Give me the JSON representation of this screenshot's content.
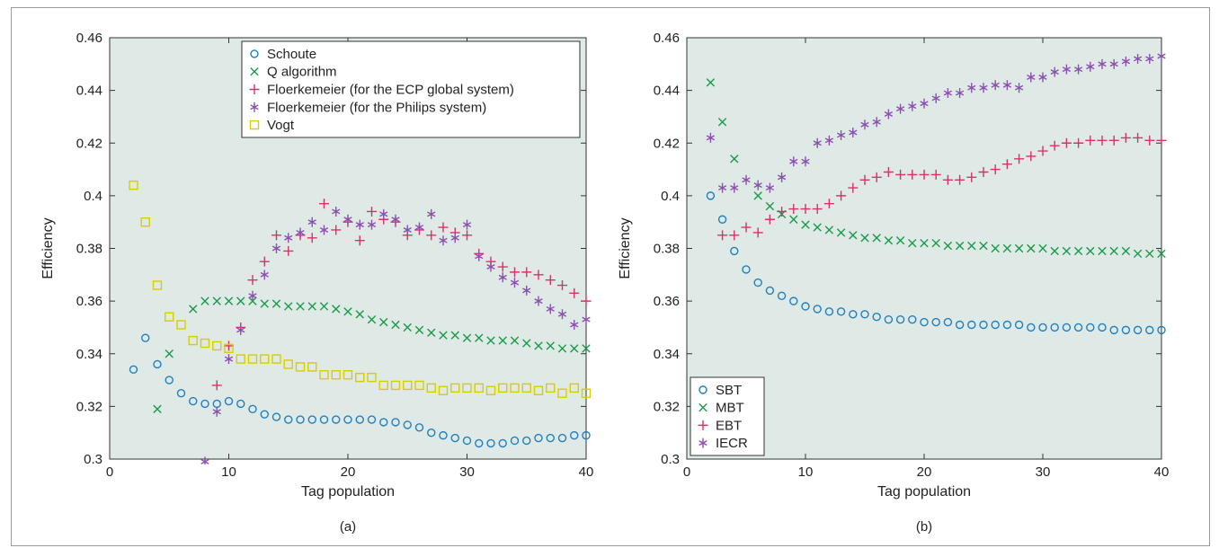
{
  "colors": {
    "plot_bg": "#dfeae6",
    "axis": "#333333",
    "blue": "#1f7fc1",
    "green": "#1a9a4a",
    "red": "#d9306a",
    "purple": "#8a4fb0",
    "yellow": "#d7cd00"
  },
  "chart_data": [
    {
      "type": "scatter",
      "caption": "(a)",
      "xlabel": "Tag population",
      "ylabel": "Efficiency",
      "xlim": [
        0,
        40
      ],
      "ylim": [
        0.3,
        0.46
      ],
      "xticks": [
        0,
        10,
        20,
        30,
        40
      ],
      "yticks": [
        0.3,
        0.32,
        0.34,
        0.36,
        0.38,
        0.4,
        0.42,
        0.44,
        0.46
      ],
      "ytick_labels": [
        "0.3",
        "0.32",
        "0.34",
        "0.36",
        "0.38",
        "0.4",
        "0.42",
        "0.44",
        "0.46"
      ],
      "legend_position": "top-right",
      "series": [
        {
          "name": "Schoute",
          "marker": "circle",
          "color": "blue",
          "x": [
            2,
            3,
            4,
            5,
            6,
            7,
            8,
            9,
            10,
            11,
            12,
            13,
            14,
            15,
            16,
            17,
            18,
            19,
            20,
            21,
            22,
            23,
            24,
            25,
            26,
            27,
            28,
            29,
            30,
            31,
            32,
            33,
            34,
            35,
            36,
            37,
            38,
            39,
            40
          ],
          "y": [
            0.334,
            0.346,
            0.336,
            0.33,
            0.325,
            0.322,
            0.321,
            0.321,
            0.322,
            0.321,
            0.319,
            0.317,
            0.316,
            0.315,
            0.315,
            0.315,
            0.315,
            0.315,
            0.315,
            0.315,
            0.315,
            0.314,
            0.314,
            0.313,
            0.312,
            0.31,
            0.309,
            0.308,
            0.307,
            0.306,
            0.306,
            0.306,
            0.307,
            0.307,
            0.308,
            0.308,
            0.308,
            0.309,
            0.309
          ]
        },
        {
          "name": "Q algorithm",
          "marker": "x",
          "color": "green",
          "x": [
            4,
            5,
            7,
            8,
            9,
            10,
            11,
            12,
            13,
            14,
            15,
            16,
            17,
            18,
            19,
            20,
            21,
            22,
            23,
            24,
            25,
            26,
            27,
            28,
            29,
            30,
            31,
            32,
            33,
            34,
            35,
            36,
            37,
            38,
            39,
            40
          ],
          "y": [
            0.319,
            0.34,
            0.357,
            0.36,
            0.36,
            0.36,
            0.36,
            0.36,
            0.359,
            0.359,
            0.358,
            0.358,
            0.358,
            0.358,
            0.357,
            0.356,
            0.355,
            0.353,
            0.352,
            0.351,
            0.35,
            0.349,
            0.348,
            0.347,
            0.347,
            0.346,
            0.346,
            0.345,
            0.345,
            0.345,
            0.344,
            0.343,
            0.343,
            0.342,
            0.342,
            0.342
          ]
        },
        {
          "name": "Floerkemeier (for the ECP global system)",
          "marker": "plus",
          "color": "red",
          "x": [
            9,
            10,
            11,
            12,
            13,
            14,
            15,
            16,
            17,
            18,
            19,
            20,
            21,
            22,
            23,
            24,
            25,
            26,
            27,
            28,
            29,
            30,
            31,
            32,
            33,
            34,
            35,
            36,
            37,
            38,
            39,
            40
          ],
          "y": [
            0.328,
            0.343,
            0.35,
            0.368,
            0.375,
            0.385,
            0.379,
            0.385,
            0.384,
            0.397,
            0.387,
            0.39,
            0.383,
            0.394,
            0.391,
            0.39,
            0.385,
            0.387,
            0.385,
            0.388,
            0.386,
            0.385,
            0.378,
            0.375,
            0.373,
            0.371,
            0.371,
            0.37,
            0.368,
            0.366,
            0.363,
            0.36
          ]
        },
        {
          "name": "Floerkemeier (for the Philips system)",
          "marker": "asterisk",
          "color": "purple",
          "x": [
            8,
            9,
            10,
            11,
            12,
            13,
            14,
            15,
            16,
            17,
            18,
            19,
            20,
            21,
            22,
            23,
            24,
            25,
            26,
            27,
            28,
            29,
            30,
            31,
            32,
            33,
            34,
            35,
            36,
            37,
            38,
            39,
            40
          ],
          "y": [
            0.299,
            0.318,
            0.338,
            0.349,
            0.362,
            0.37,
            0.38,
            0.384,
            0.386,
            0.39,
            0.387,
            0.394,
            0.391,
            0.389,
            0.389,
            0.393,
            0.391,
            0.387,
            0.388,
            0.393,
            0.383,
            0.384,
            0.389,
            0.377,
            0.373,
            0.369,
            0.367,
            0.364,
            0.36,
            0.357,
            0.355,
            0.351,
            0.353
          ]
        },
        {
          "name": "Vogt",
          "marker": "square",
          "color": "yellow",
          "x": [
            2,
            3,
            4,
            5,
            6,
            7,
            8,
            9,
            10,
            11,
            12,
            13,
            14,
            15,
            16,
            17,
            18,
            19,
            20,
            21,
            22,
            23,
            24,
            25,
            26,
            27,
            28,
            29,
            30,
            31,
            32,
            33,
            34,
            35,
            36,
            37,
            38,
            39,
            40
          ],
          "y": [
            0.404,
            0.39,
            0.366,
            0.354,
            0.351,
            0.345,
            0.344,
            0.343,
            0.342,
            0.338,
            0.338,
            0.338,
            0.338,
            0.336,
            0.335,
            0.335,
            0.332,
            0.332,
            0.332,
            0.331,
            0.331,
            0.328,
            0.328,
            0.328,
            0.328,
            0.327,
            0.326,
            0.327,
            0.327,
            0.327,
            0.326,
            0.327,
            0.327,
            0.327,
            0.326,
            0.327,
            0.325,
            0.327,
            0.325
          ]
        }
      ]
    },
    {
      "type": "scatter",
      "caption": "(b)",
      "xlabel": "Tag population",
      "ylabel": "Efficiency",
      "xlim": [
        0,
        40
      ],
      "ylim": [
        0.3,
        0.46
      ],
      "xticks": [
        0,
        10,
        20,
        30,
        40
      ],
      "yticks": [
        0.3,
        0.32,
        0.34,
        0.36,
        0.38,
        0.4,
        0.42,
        0.44,
        0.46
      ],
      "ytick_labels": [
        "0.3",
        "0.32",
        "0.34",
        "0.36",
        "0.38",
        "0.4",
        "0.42",
        "0.44",
        "0.46"
      ],
      "legend_position": "bottom-left",
      "series": [
        {
          "name": "SBT",
          "marker": "circle",
          "color": "blue",
          "x": [
            2,
            3,
            4,
            5,
            6,
            7,
            8,
            9,
            10,
            11,
            12,
            13,
            14,
            15,
            16,
            17,
            18,
            19,
            20,
            21,
            22,
            23,
            24,
            25,
            26,
            27,
            28,
            29,
            30,
            31,
            32,
            33,
            34,
            35,
            36,
            37,
            38,
            39,
            40
          ],
          "y": [
            0.4,
            0.391,
            0.379,
            0.372,
            0.367,
            0.364,
            0.362,
            0.36,
            0.358,
            0.357,
            0.356,
            0.356,
            0.355,
            0.355,
            0.354,
            0.353,
            0.353,
            0.353,
            0.352,
            0.352,
            0.352,
            0.351,
            0.351,
            0.351,
            0.351,
            0.351,
            0.351,
            0.35,
            0.35,
            0.35,
            0.35,
            0.35,
            0.35,
            0.35,
            0.349,
            0.349,
            0.349,
            0.349,
            0.349
          ]
        },
        {
          "name": "MBT",
          "marker": "x",
          "color": "green",
          "x": [
            2,
            3,
            4,
            6,
            7,
            8,
            9,
            10,
            11,
            12,
            13,
            14,
            15,
            16,
            17,
            18,
            19,
            20,
            21,
            22,
            23,
            24,
            25,
            26,
            27,
            28,
            29,
            30,
            31,
            32,
            33,
            34,
            35,
            36,
            37,
            38,
            39,
            40
          ],
          "y": [
            0.443,
            0.428,
            0.414,
            0.4,
            0.396,
            0.393,
            0.391,
            0.389,
            0.388,
            0.387,
            0.386,
            0.385,
            0.384,
            0.384,
            0.383,
            0.383,
            0.382,
            0.382,
            0.382,
            0.381,
            0.381,
            0.381,
            0.381,
            0.38,
            0.38,
            0.38,
            0.38,
            0.38,
            0.379,
            0.379,
            0.379,
            0.379,
            0.379,
            0.379,
            0.379,
            0.378,
            0.378,
            0.378
          ]
        },
        {
          "name": "EBT",
          "marker": "plus",
          "color": "red",
          "x": [
            3,
            4,
            5,
            6,
            7,
            8,
            9,
            10,
            11,
            12,
            13,
            14,
            15,
            16,
            17,
            18,
            19,
            20,
            21,
            22,
            23,
            24,
            25,
            26,
            27,
            28,
            29,
            30,
            31,
            32,
            33,
            34,
            35,
            36,
            37,
            38,
            39,
            40
          ],
          "y": [
            0.385,
            0.385,
            0.388,
            0.386,
            0.391,
            0.394,
            0.395,
            0.395,
            0.395,
            0.397,
            0.4,
            0.403,
            0.406,
            0.407,
            0.409,
            0.408,
            0.408,
            0.408,
            0.408,
            0.406,
            0.406,
            0.407,
            0.409,
            0.41,
            0.412,
            0.414,
            0.415,
            0.417,
            0.419,
            0.42,
            0.42,
            0.421,
            0.421,
            0.421,
            0.422,
            0.422,
            0.421,
            0.421
          ]
        },
        {
          "name": "IECR",
          "marker": "asterisk",
          "color": "purple",
          "x": [
            2,
            3,
            4,
            5,
            6,
            7,
            8,
            9,
            10,
            11,
            12,
            13,
            14,
            15,
            16,
            17,
            18,
            19,
            20,
            21,
            22,
            23,
            24,
            25,
            26,
            27,
            28,
            29,
            30,
            31,
            32,
            33,
            34,
            35,
            36,
            37,
            38,
            39,
            40
          ],
          "y": [
            0.422,
            0.403,
            0.403,
            0.406,
            0.404,
            0.403,
            0.407,
            0.413,
            0.413,
            0.42,
            0.421,
            0.423,
            0.424,
            0.427,
            0.428,
            0.431,
            0.433,
            0.434,
            0.435,
            0.437,
            0.439,
            0.439,
            0.441,
            0.441,
            0.442,
            0.442,
            0.441,
            0.445,
            0.445,
            0.447,
            0.448,
            0.448,
            0.449,
            0.45,
            0.45,
            0.451,
            0.452,
            0.452,
            0.453
          ]
        }
      ]
    }
  ]
}
